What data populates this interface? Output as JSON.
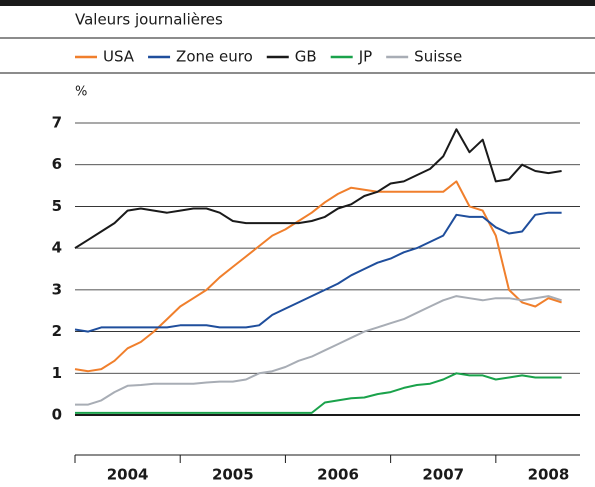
{
  "chart_data": {
    "type": "line",
    "subtitle": "Valeurs journalières",
    "y_label": "%",
    "x": [
      2004,
      2004.125,
      2004.25,
      2004.375,
      2004.5,
      2004.625,
      2004.75,
      2004.875,
      2005,
      2005.125,
      2005.25,
      2005.375,
      2005.5,
      2005.625,
      2005.75,
      2005.875,
      2006,
      2006.125,
      2006.25,
      2006.375,
      2006.5,
      2006.625,
      2006.75,
      2006.875,
      2007,
      2007.125,
      2007.25,
      2007.375,
      2007.5,
      2007.625,
      2007.75,
      2007.875,
      2008,
      2008.125,
      2008.25,
      2008.375,
      2008.5,
      2008.625
    ],
    "series": [
      {
        "name": "USA",
        "color": "#f07f2c",
        "values": [
          1.1,
          1.05,
          1.1,
          1.3,
          1.6,
          1.75,
          2.0,
          2.3,
          2.6,
          2.8,
          3.0,
          3.3,
          3.55,
          3.8,
          4.05,
          4.3,
          4.45,
          4.65,
          4.85,
          5.1,
          5.3,
          5.45,
          5.4,
          5.35,
          5.35,
          5.35,
          5.35,
          5.35,
          5.35,
          5.6,
          5.0,
          4.9,
          4.3,
          3.0,
          2.7,
          2.6,
          2.8,
          2.7
        ]
      },
      {
        "name": "Zone euro",
        "color": "#1f4e9c",
        "values": [
          2.05,
          2.0,
          2.1,
          2.1,
          2.1,
          2.1,
          2.1,
          2.1,
          2.15,
          2.15,
          2.15,
          2.1,
          2.1,
          2.1,
          2.15,
          2.4,
          2.55,
          2.7,
          2.85,
          3.0,
          3.15,
          3.35,
          3.5,
          3.65,
          3.75,
          3.9,
          4.0,
          4.15,
          4.3,
          4.8,
          4.75,
          4.75,
          4.5,
          4.35,
          4.4,
          4.8,
          4.85,
          4.85
        ]
      },
      {
        "name": "GB",
        "color": "#1a1a1a",
        "values": [
          4.0,
          4.2,
          4.4,
          4.6,
          4.9,
          4.95,
          4.9,
          4.85,
          4.9,
          4.95,
          4.95,
          4.85,
          4.65,
          4.6,
          4.6,
          4.6,
          4.6,
          4.6,
          4.65,
          4.75,
          4.95,
          5.05,
          5.25,
          5.35,
          5.55,
          5.6,
          5.75,
          5.9,
          6.2,
          6.85,
          6.3,
          6.6,
          5.6,
          5.65,
          6.0,
          5.85,
          5.8,
          5.85
        ]
      },
      {
        "name": "JP",
        "color": "#1aa24b",
        "values": [
          0.05,
          0.05,
          0.05,
          0.05,
          0.05,
          0.05,
          0.05,
          0.05,
          0.05,
          0.05,
          0.05,
          0.05,
          0.05,
          0.05,
          0.05,
          0.05,
          0.05,
          0.05,
          0.05,
          0.3,
          0.35,
          0.4,
          0.42,
          0.5,
          0.55,
          0.65,
          0.72,
          0.75,
          0.85,
          1.0,
          0.95,
          0.95,
          0.85,
          0.9,
          0.95,
          0.9,
          0.9,
          0.9
        ]
      },
      {
        "name": "Suisse",
        "color": "#a8adb5",
        "values": [
          0.25,
          0.25,
          0.35,
          0.55,
          0.7,
          0.72,
          0.75,
          0.75,
          0.75,
          0.75,
          0.78,
          0.8,
          0.8,
          0.85,
          1.0,
          1.05,
          1.15,
          1.3,
          1.4,
          1.55,
          1.7,
          1.85,
          2.0,
          2.1,
          2.2,
          2.3,
          2.45,
          2.6,
          2.75,
          2.85,
          2.8,
          2.75,
          2.8,
          2.8,
          2.75,
          2.8,
          2.85,
          2.75
        ]
      }
    ],
    "xlim": [
      2004,
      2008.8
    ],
    "xticks": [
      {
        "value": 2004,
        "label": "2004"
      },
      {
        "value": 2005,
        "label": "2005"
      },
      {
        "value": 2006,
        "label": "2006"
      },
      {
        "value": 2007,
        "label": "2007"
      },
      {
        "value": 2008,
        "label": "2008"
      }
    ],
    "ylim": [
      0,
      7
    ],
    "yticks": [
      0,
      1,
      2,
      3,
      4,
      5,
      6,
      7
    ],
    "grid": true
  }
}
